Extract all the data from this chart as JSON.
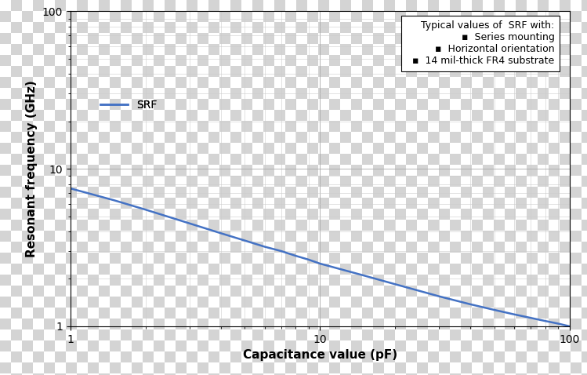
{
  "x_data": [
    1,
    1.5,
    2,
    3,
    4,
    5,
    6,
    7,
    8,
    9,
    10,
    15,
    20,
    30,
    40,
    50,
    60,
    70,
    80,
    90,
    100
  ],
  "y_data": [
    7.5,
    6.3,
    5.5,
    4.5,
    3.9,
    3.5,
    3.2,
    3.0,
    2.8,
    2.65,
    2.5,
    2.1,
    1.85,
    1.55,
    1.38,
    1.27,
    1.19,
    1.13,
    1.08,
    1.04,
    1.0
  ],
  "line_color": "#4472C4",
  "line_label": "SRF",
  "xlabel": "Capacitance value (pF)",
  "ylabel": "Resonant frequency (GHz)",
  "xlim": [
    1,
    100
  ],
  "ylim": [
    1,
    100
  ],
  "checker_light": "#d4d4d4",
  "checker_dark": "#ffffff",
  "grid_color": "#aaaaaa",
  "annotation_title": "Typical values of  SRF with:",
  "annotation_lines": [
    "Series mounting",
    "Horizontal orientation",
    "14 mil-thick FR4 substrate"
  ],
  "xlabel_fontsize": 11,
  "ylabel_fontsize": 11,
  "tick_fontsize": 10,
  "checker_size": 14
}
